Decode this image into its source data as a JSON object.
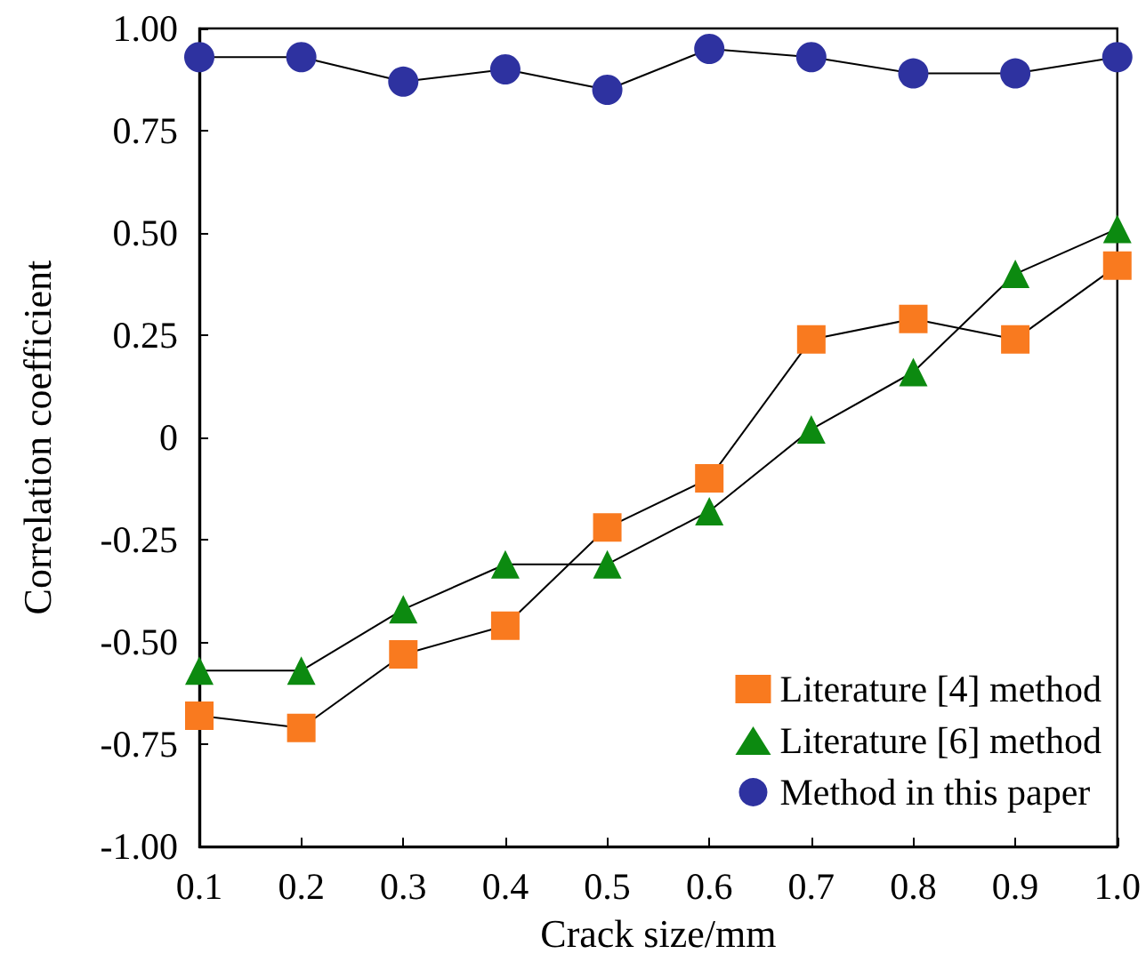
{
  "chart_data": {
    "type": "line",
    "xlabel": "Crack size/mm",
    "ylabel": "Correlation coefficient",
    "x": [
      0.1,
      0.2,
      0.3,
      0.4,
      0.5,
      0.6,
      0.7,
      0.8,
      0.9,
      1.0
    ],
    "series": [
      {
        "name": "Literature [4] method",
        "color": "#f97a1f",
        "marker": "square",
        "values": [
          -0.68,
          -0.71,
          -0.53,
          -0.46,
          -0.22,
          -0.1,
          0.24,
          0.29,
          0.24,
          0.42
        ]
      },
      {
        "name": "Literature [6] method",
        "color": "#0c8a10",
        "marker": "triangle",
        "values": [
          -0.57,
          -0.57,
          -0.42,
          -0.31,
          -0.31,
          -0.18,
          0.02,
          0.16,
          0.4,
          0.51
        ]
      },
      {
        "name": "Method in this paper",
        "color": "#2e32a0",
        "marker": "circle",
        "values": [
          0.93,
          0.93,
          0.87,
          0.9,
          0.85,
          0.95,
          0.93,
          0.89,
          0.89,
          0.93
        ]
      }
    ],
    "xlim": [
      0.1,
      1.0
    ],
    "xticks": [
      0.1,
      0.2,
      0.3,
      0.4,
      0.5,
      0.6,
      0.7,
      0.8,
      0.9,
      {
        "value": 1,
        "label": "1.0"
      }
    ],
    "ylim": [
      -1,
      1
    ],
    "yticks": [
      {
        "value": -1,
        "label": "-1.00"
      },
      {
        "value": -0.75,
        "label": "-0.75"
      },
      {
        "value": -0.5,
        "label": "-0.50"
      },
      {
        "value": -0.25,
        "label": "-0.25"
      },
      {
        "value": 0,
        "label": "0"
      },
      {
        "value": 0.25,
        "label": "0.25"
      },
      {
        "value": 0.5,
        "label": "0.50"
      },
      {
        "value": 0.75,
        "label": "0.75"
      },
      {
        "value": 1,
        "label": "1.00"
      }
    ],
    "grid": false,
    "legend": "bottom right",
    "line_style": "solid"
  }
}
